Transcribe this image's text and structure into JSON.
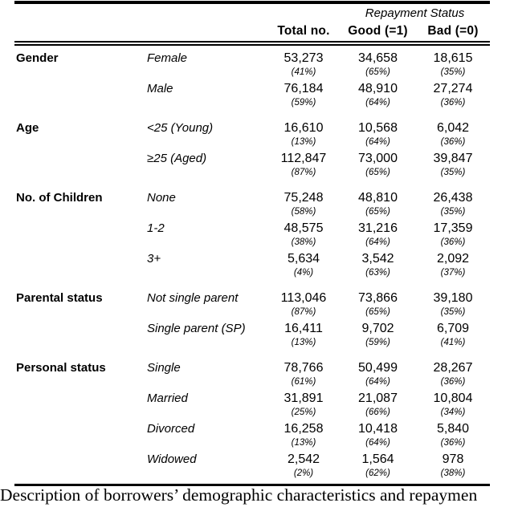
{
  "table": {
    "header": {
      "repayment_status": "Repayment Status",
      "columns": [
        "Total no.",
        "Good (=1)",
        "Bad (=0)"
      ]
    },
    "sections": [
      {
        "category": "Gender",
        "rows": [
          {
            "label": "Female",
            "total": "53,273",
            "total_pct": "(41%)",
            "good": "34,658",
            "good_pct": "(65%)",
            "bad": "18,615",
            "bad_pct": "(35%)"
          },
          {
            "label": "Male",
            "total": "76,184",
            "total_pct": "(59%)",
            "good": "48,910",
            "good_pct": "(64%)",
            "bad": "27,274",
            "bad_pct": "(36%)"
          }
        ]
      },
      {
        "category": "Age",
        "rows": [
          {
            "label": "<25 (Young)",
            "total": "16,610",
            "total_pct": "(13%)",
            "good": "10,568",
            "good_pct": "(64%)",
            "bad": "6,042",
            "bad_pct": "(36%)"
          },
          {
            "label": "≥25 (Aged)",
            "total": "112,847",
            "total_pct": "(87%)",
            "good": "73,000",
            "good_pct": "(65%)",
            "bad": "39,847",
            "bad_pct": "(35%)"
          }
        ]
      },
      {
        "category": "No. of Children",
        "rows": [
          {
            "label": "None",
            "total": "75,248",
            "total_pct": "(58%)",
            "good": "48,810",
            "good_pct": "(65%)",
            "bad": "26,438",
            "bad_pct": "(35%)"
          },
          {
            "label": "1-2",
            "total": "48,575",
            "total_pct": "(38%)",
            "good": "31,216",
            "good_pct": "(64%)",
            "bad": "17,359",
            "bad_pct": "(36%)"
          },
          {
            "label": "3+",
            "total": "5,634",
            "total_pct": "(4%)",
            "good": "3,542",
            "good_pct": "(63%)",
            "bad": "2,092",
            "bad_pct": "(37%)"
          }
        ]
      },
      {
        "category": "Parental status",
        "rows": [
          {
            "label": "Not single parent",
            "total": "113,046",
            "total_pct": "(87%)",
            "good": "73,866",
            "good_pct": "(65%)",
            "bad": "39,180",
            "bad_pct": "(35%)"
          },
          {
            "label": "Single parent (SP)",
            "total": "16,411",
            "total_pct": "(13%)",
            "good": "9,702",
            "good_pct": "(59%)",
            "bad": "6,709",
            "bad_pct": "(41%)"
          }
        ]
      },
      {
        "category": "Personal status",
        "rows": [
          {
            "label": "Single",
            "total": "78,766",
            "total_pct": "(61%)",
            "good": "50,499",
            "good_pct": "(64%)",
            "bad": "28,267",
            "bad_pct": "(36%)"
          },
          {
            "label": "Married",
            "total": "31,891",
            "total_pct": "(25%)",
            "good": "21,087",
            "good_pct": "(66%)",
            "bad": "10,804",
            "bad_pct": "(34%)"
          },
          {
            "label": "Divorced",
            "total": "16,258",
            "total_pct": "(13%)",
            "good": "10,418",
            "good_pct": "(64%)",
            "bad": "5,840",
            "bad_pct": "(36%)"
          },
          {
            "label": "Widowed",
            "total": "2,542",
            "total_pct": "(2%)",
            "good": "1,564",
            "good_pct": "(62%)",
            "bad": "978",
            "bad_pct": "(38%)"
          }
        ]
      }
    ]
  },
  "caption": "Description of borrowers’ demographic characteristics and repaymen",
  "colors": {
    "text": "#000000",
    "background": "#ffffff",
    "rule": "#000000"
  }
}
